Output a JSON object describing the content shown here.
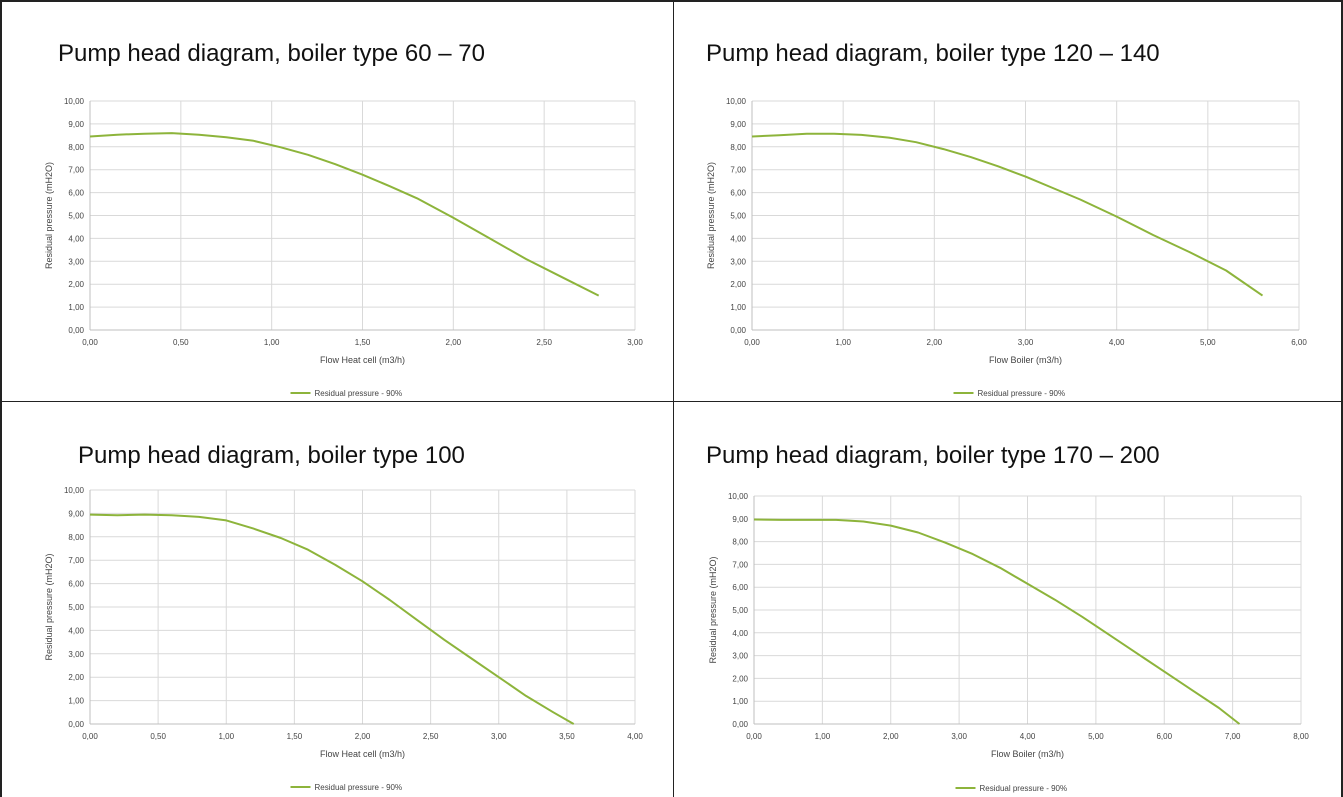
{
  "charts": [
    {
      "title": "Pump head diagram, boiler type 60 – 70",
      "xlabel": "Flow Heat cell (m3/h)",
      "ylabel": "Residual pressure (mH2O)",
      "legend": "Residual pressure - 90%",
      "x_ticks": [
        "0,00",
        "0,50",
        "1,00",
        "1,50",
        "2,00",
        "2,50",
        "3,00"
      ],
      "y_ticks": [
        "0,00",
        "1,00",
        "2,00",
        "3,00",
        "4,00",
        "5,00",
        "6,00",
        "7,00",
        "8,00",
        "9,00",
        "10,00"
      ]
    },
    {
      "title": "Pump head diagram, boiler type 120 – 140",
      "xlabel": "Flow Boiler (m3/h)",
      "ylabel": "Residual pressure (mH2O)",
      "legend": "Residual pressure - 90%",
      "x_ticks": [
        "0,00",
        "1,00",
        "2,00",
        "3,00",
        "4,00",
        "5,00",
        "6,00"
      ],
      "y_ticks": [
        "0,00",
        "1,00",
        "2,00",
        "3,00",
        "4,00",
        "5,00",
        "6,00",
        "7,00",
        "8,00",
        "9,00",
        "10,00"
      ]
    },
    {
      "title": "Pump head diagram, boiler type 100",
      "xlabel": "Flow Heat cell (m3/h)",
      "ylabel": "Residual pressure (mH2O)",
      "legend": "Residual pressure - 90%",
      "x_ticks": [
        "0,00",
        "0,50",
        "1,00",
        "1,50",
        "2,00",
        "2,50",
        "3,00",
        "3,50",
        "4,00"
      ],
      "y_ticks": [
        "0,00",
        "1,00",
        "2,00",
        "3,00",
        "4,00",
        "5,00",
        "6,00",
        "7,00",
        "8,00",
        "9,00",
        "10,00"
      ]
    },
    {
      "title": "Pump head diagram, boiler type 170 – 200",
      "xlabel": "Flow Boiler (m3/h)",
      "ylabel": "Residual pressure (mH2O)",
      "legend": "Residual pressure - 90%",
      "x_ticks": [
        "0,00",
        "1,00",
        "2,00",
        "3,00",
        "4,00",
        "5,00",
        "6,00",
        "7,00",
        "8,00"
      ],
      "y_ticks": [
        "0,00",
        "1,00",
        "2,00",
        "3,00",
        "4,00",
        "5,00",
        "6,00",
        "7,00",
        "8,00",
        "9,00",
        "10,00"
      ]
    }
  ],
  "chart_data": [
    {
      "type": "line",
      "title": "Pump head diagram, boiler type 60 – 70",
      "xlabel": "Flow Heat cell (m3/h)",
      "ylabel": "Residual pressure (mH2O)",
      "xlim": [
        0,
        3
      ],
      "ylim": [
        0,
        10
      ],
      "series": [
        {
          "name": "Residual pressure - 90%",
          "color": "#8db43b",
          "x": [
            0.0,
            0.15,
            0.3,
            0.45,
            0.6,
            0.75,
            0.9,
            1.05,
            1.2,
            1.35,
            1.5,
            1.65,
            1.8,
            2.0,
            2.2,
            2.4,
            2.6,
            2.8
          ],
          "y": [
            8.45,
            8.53,
            8.57,
            8.6,
            8.53,
            8.42,
            8.26,
            7.98,
            7.65,
            7.24,
            6.78,
            6.28,
            5.75,
            4.9,
            4.0,
            3.1,
            2.3,
            1.5
          ]
        }
      ],
      "grid": true,
      "legend_position": "bottom"
    },
    {
      "type": "line",
      "title": "Pump head diagram, boiler type 120 – 140",
      "xlabel": "Flow Boiler (m3/h)",
      "ylabel": "Residual pressure (mH2O)",
      "xlim": [
        0,
        6
      ],
      "ylim": [
        0,
        10
      ],
      "series": [
        {
          "name": "Residual pressure - 90%",
          "color": "#8db43b",
          "x": [
            0.0,
            0.3,
            0.6,
            0.9,
            1.2,
            1.5,
            1.8,
            2.1,
            2.4,
            2.7,
            3.0,
            3.3,
            3.6,
            4.0,
            4.4,
            4.8,
            5.2,
            5.6
          ],
          "y": [
            8.45,
            8.5,
            8.57,
            8.57,
            8.52,
            8.4,
            8.2,
            7.9,
            7.55,
            7.15,
            6.7,
            6.2,
            5.7,
            4.95,
            4.15,
            3.4,
            2.6,
            1.5
          ]
        }
      ],
      "grid": true,
      "legend_position": "bottom"
    },
    {
      "type": "line",
      "title": "Pump head diagram, boiler type 100",
      "xlabel": "Flow Heat cell (m3/h)",
      "ylabel": "Residual pressure (mH2O)",
      "xlim": [
        0,
        4
      ],
      "ylim": [
        0,
        10
      ],
      "series": [
        {
          "name": "Residual pressure - 90%",
          "color": "#8db43b",
          "x": [
            0.0,
            0.2,
            0.4,
            0.6,
            0.8,
            1.0,
            1.2,
            1.4,
            1.6,
            1.8,
            2.0,
            2.2,
            2.4,
            2.6,
            2.8,
            3.0,
            3.2,
            3.4,
            3.55
          ],
          "y": [
            8.95,
            8.92,
            8.95,
            8.92,
            8.85,
            8.7,
            8.35,
            7.95,
            7.45,
            6.8,
            6.1,
            5.3,
            4.45,
            3.6,
            2.8,
            2.0,
            1.2,
            0.5,
            0.0
          ]
        }
      ],
      "grid": true,
      "legend_position": "bottom"
    },
    {
      "type": "line",
      "title": "Pump head diagram, boiler type 170 – 200",
      "xlabel": "Flow Boiler (m3/h)",
      "ylabel": "Residual pressure (mH2O)",
      "xlim": [
        0,
        8
      ],
      "ylim": [
        0,
        10
      ],
      "series": [
        {
          "name": "Residual pressure - 90%",
          "color": "#8db43b",
          "x": [
            0.0,
            0.4,
            0.8,
            1.2,
            1.6,
            2.0,
            2.4,
            2.8,
            3.2,
            3.6,
            4.0,
            4.4,
            4.8,
            5.2,
            5.6,
            6.0,
            6.4,
            6.8,
            7.1
          ],
          "y": [
            8.97,
            8.95,
            8.95,
            8.95,
            8.88,
            8.7,
            8.4,
            7.95,
            7.45,
            6.85,
            6.15,
            5.45,
            4.7,
            3.9,
            3.1,
            2.3,
            1.5,
            0.7,
            0.0
          ]
        }
      ],
      "grid": true,
      "legend_position": "bottom"
    }
  ]
}
